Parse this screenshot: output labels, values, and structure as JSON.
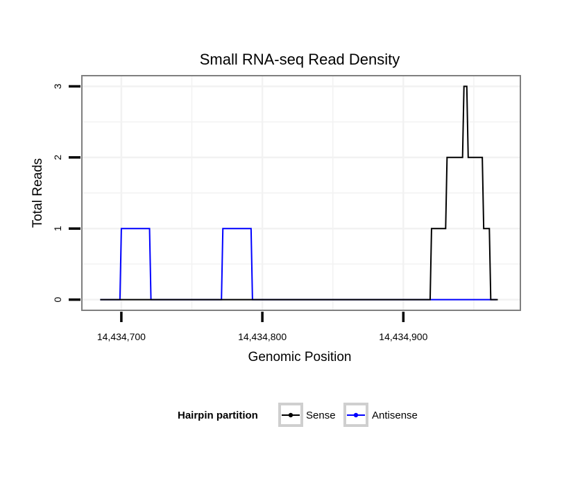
{
  "chart_data": {
    "type": "line",
    "title": "Small RNA-seq Read Density",
    "xlabel": "Genomic Position",
    "ylabel": "Total Reads",
    "xlim": [
      14434672,
      14434983
    ],
    "ylim": [
      -0.15,
      3.15
    ],
    "x_ticks": [
      14434700,
      14434800,
      14434900
    ],
    "x_tick_labels": [
      "14,434,700",
      "14,434,800",
      "14,434,900"
    ],
    "y_ticks": [
      0,
      1,
      2,
      3
    ],
    "y_tick_labels": [
      "0",
      "1",
      "2",
      "3"
    ],
    "grid": true,
    "legend": {
      "title": "Hairpin partition",
      "position": "bottom"
    },
    "series": [
      {
        "name": "Sense",
        "color": "#000000",
        "x": [
          14434685,
          14434919,
          14434920,
          14434930,
          14434931,
          14434942,
          14434943,
          14434945,
          14434946,
          14434956,
          14434957,
          14434961,
          14434962,
          14434967
        ],
        "y": [
          0,
          0,
          1,
          1,
          2,
          2,
          3,
          3,
          2,
          2,
          1,
          1,
          0,
          0
        ]
      },
      {
        "name": "Antisense",
        "color": "#0000ff",
        "x": [
          14434685,
          14434699,
          14434700,
          14434720,
          14434721,
          14434771,
          14434772,
          14434792,
          14434793,
          14434966
        ],
        "y": [
          0,
          0,
          1,
          1,
          0,
          0,
          1,
          1,
          0,
          0
        ]
      }
    ]
  }
}
